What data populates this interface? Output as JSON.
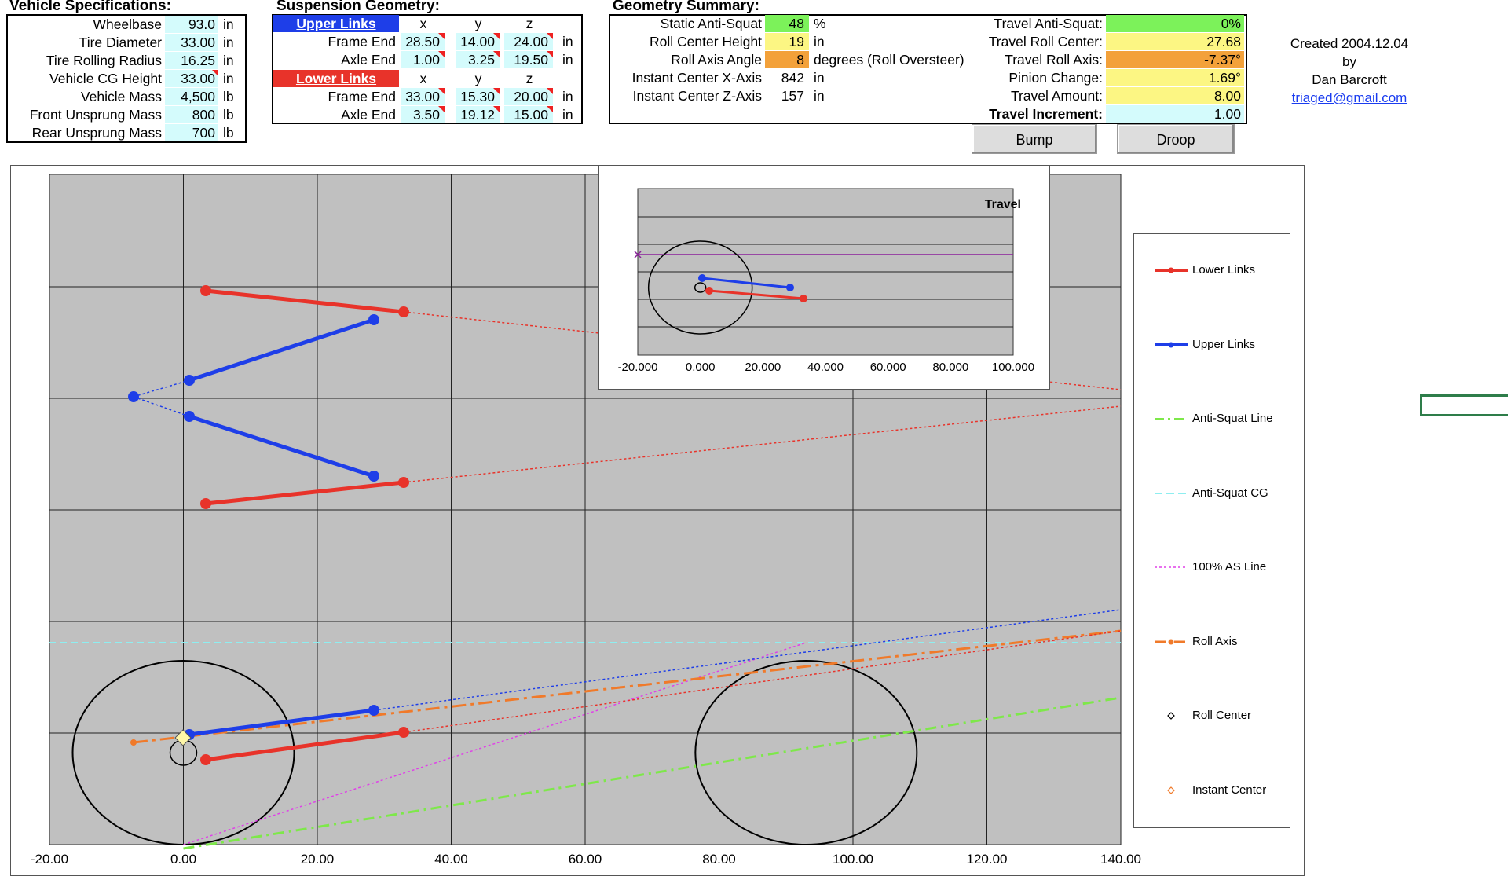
{
  "vehicle_specs": {
    "title": "Vehicle Specifications:",
    "rows": [
      {
        "label": "Wheelbase",
        "value": "93.0",
        "unit": "in"
      },
      {
        "label": "Tire Diameter",
        "value": "33.00",
        "unit": "in"
      },
      {
        "label": "Tire Rolling Radius",
        "value": "16.25",
        "unit": "in"
      },
      {
        "label": "Vehicle CG Height",
        "value": "33.00",
        "unit": "in"
      },
      {
        "label": "Vehicle Mass",
        "value": "4,500",
        "unit": "lb"
      },
      {
        "label": "Front Unsprung Mass",
        "value": "800",
        "unit": "lb"
      },
      {
        "label": "Rear Unsprung Mass",
        "value": "700",
        "unit": "lb"
      }
    ]
  },
  "suspension": {
    "title": "Suspension Geometry:",
    "upper_header": "Upper Links",
    "lower_header": "Lower Links",
    "cols": [
      "x",
      "y",
      "z"
    ],
    "unit": "in",
    "upper": [
      {
        "label": "Frame End",
        "values": [
          "28.50",
          "14.00",
          "24.00"
        ]
      },
      {
        "label": "Axle End",
        "values": [
          "1.00",
          "3.25",
          "19.50"
        ]
      }
    ],
    "lower": [
      {
        "label": "Frame End",
        "values": [
          "33.00",
          "15.30",
          "20.00"
        ]
      },
      {
        "label": "Axle End",
        "values": [
          "3.50",
          "19.12",
          "15.00"
        ]
      }
    ]
  },
  "summary": {
    "title": "Geometry Summary:",
    "left": [
      {
        "label": "Static Anti-Squat",
        "value": "48",
        "unit": "%",
        "color": "#7cf25a"
      },
      {
        "label": "Roll Center Height",
        "value": "19",
        "unit": "in",
        "color": "#fcf683"
      },
      {
        "label": "Roll Axis Angle",
        "value": "8",
        "unit": "degrees (Roll Oversteer)",
        "color": "#f3a13a"
      },
      {
        "label": "Instant Center X-Axis",
        "value": "842",
        "unit": "in",
        "color": ""
      },
      {
        "label": "Instant Center Z-Axis",
        "value": "157",
        "unit": "in",
        "color": ""
      }
    ],
    "right": [
      {
        "label": "Travel Anti-Squat:",
        "value": "0%",
        "color": "#7cf25a"
      },
      {
        "label": "Travel Roll Center:",
        "value": "27.68",
        "color": "#fcf683"
      },
      {
        "label": "Travel Roll Axis:",
        "value": "-7.37°",
        "color": "#f3a13a"
      },
      {
        "label": "Pinion Change:",
        "value": "1.69°",
        "color": "#fcf683"
      },
      {
        "label": "Travel Amount:",
        "value": "8.00",
        "color": "#fcf683"
      },
      {
        "label": "Travel Increment:",
        "value": "1.00",
        "color": "#d4fbfc"
      }
    ]
  },
  "buttons": {
    "bump": "Bump",
    "droop": "Droop"
  },
  "credits": {
    "line1": "Created 2004.12.04",
    "line2": "by",
    "line3": "Dan Barcroft",
    "email": "triaged@gmail.com"
  },
  "main_chart": {
    "x_ticks": [
      "-20.00",
      "0.00",
      "20.00",
      "40.00",
      "60.00",
      "80.00",
      "100.00",
      "120.00",
      "140.00"
    ],
    "xlim": [
      -20,
      140
    ]
  },
  "inset_chart": {
    "title": "Travel",
    "x_ticks": [
      "-20.000",
      "0.000",
      "20.000",
      "40.000",
      "60.000",
      "80.000",
      "100.000"
    ]
  },
  "legend": [
    {
      "label": "Lower Links",
      "color": "#e8332a",
      "style": "solid-thick"
    },
    {
      "label": "Upper Links",
      "color": "#1e3ee8",
      "style": "solid-thick"
    },
    {
      "label": "Anti-Squat Line",
      "color": "#7ee84a",
      "style": "dashdot"
    },
    {
      "label": "Anti-Squat CG",
      "color": "#8eeef0",
      "style": "dash"
    },
    {
      "label": "100% AS Line",
      "color": "#e040e8",
      "style": "dot"
    },
    {
      "label": "Roll Axis",
      "color": "#f07a2a",
      "style": "dashdot-marker"
    },
    {
      "label": "Roll Center",
      "color": "#000000",
      "style": "diamond"
    },
    {
      "label": "Instant Center",
      "color": "#f07a2a",
      "style": "diamond"
    }
  ]
}
